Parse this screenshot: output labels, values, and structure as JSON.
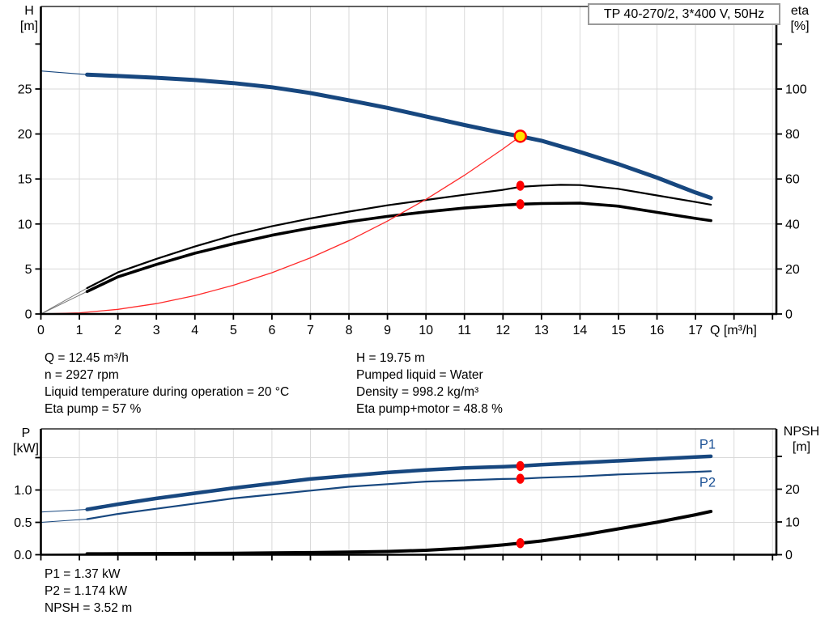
{
  "colors": {
    "curve_blue": "#17477f",
    "label_blue": "#1d5296",
    "red": "#ff0000",
    "yellow": "#ffe400",
    "grid": "#d9d9d9",
    "axis": "#000000",
    "lead_gray": "#777777"
  },
  "title_box": {
    "label": "TP 40-270/2, 3*400 V, 50Hz"
  },
  "info_top": {
    "left": [
      "Q = 12.45 m³/h",
      "n = 2927 rpm",
      "Liquid temperature during operation = 20 °C",
      "Eta pump = 57 %"
    ],
    "right": [
      "H = 19.75 m",
      "Pumped liquid = Water",
      "Density = 998.2 kg/m³",
      "Eta pump+motor = 48.8 %"
    ]
  },
  "info_bottom": [
    "P1 = 1.37 kW",
    "P2 = 1.174 kW",
    "NPSH = 3.52 m"
  ],
  "chart_data": [
    {
      "name": "head-efficiency-chart",
      "type": "line",
      "title": "TP 40-270/2, 3*400 V, 50Hz",
      "x_axis": {
        "label": "Q [m³/h]",
        "min": 0,
        "max": 19.1,
        "tick_labels": [
          "0",
          "1",
          "2",
          "3",
          "4",
          "5",
          "6",
          "7",
          "8",
          "9",
          "10",
          "11",
          "12",
          "13",
          "14",
          "15",
          "16",
          "17"
        ]
      },
      "y_left": {
        "name": "H",
        "unit": "[m]",
        "min": 0,
        "max": 34.17,
        "ticks": [
          {
            "v": 0,
            "label": "0"
          },
          {
            "v": 5,
            "label": "5"
          },
          {
            "v": 10,
            "label": "10"
          },
          {
            "v": 15,
            "label": "15"
          },
          {
            "v": 20,
            "label": "20"
          },
          {
            "v": 25,
            "label": "25"
          },
          {
            "v": 30
          }
        ],
        "grid_values": [
          5,
          10,
          15,
          20,
          25
        ]
      },
      "y_right": {
        "name": "eta",
        "unit": "[%]",
        "min": 0,
        "max": 136.7,
        "ticks": [
          {
            "v": 0,
            "label": "0"
          },
          {
            "v": 20,
            "label": "20"
          },
          {
            "v": 40,
            "label": "40"
          },
          {
            "v": 60,
            "label": "60"
          },
          {
            "v": 80,
            "label": "80"
          },
          {
            "v": 100,
            "label": "100"
          },
          {
            "v": 120
          }
        ]
      },
      "series": [
        {
          "name": "head-curve-lead",
          "axis": "left",
          "color": "#17477f",
          "width": 1.2,
          "points": [
            [
              0,
              27.0
            ],
            [
              1.2,
              26.6
            ]
          ]
        },
        {
          "name": "head-curve",
          "axis": "left",
          "color": "#17477f",
          "width": 5,
          "points": [
            [
              1.2,
              26.6
            ],
            [
              2,
              26.45
            ],
            [
              3,
              26.25
            ],
            [
              4,
              26.0
            ],
            [
              5,
              25.65
            ],
            [
              6,
              25.2
            ],
            [
              7,
              24.55
            ],
            [
              8,
              23.75
            ],
            [
              9,
              22.9
            ],
            [
              10,
              21.95
            ],
            [
              11,
              21.0
            ],
            [
              12,
              20.1
            ],
            [
              12.45,
              19.75
            ],
            [
              13,
              19.25
            ],
            [
              14,
              18.0
            ],
            [
              15,
              16.65
            ],
            [
              16,
              15.15
            ],
            [
              17,
              13.5
            ],
            [
              17.4,
              12.9
            ]
          ]
        },
        {
          "name": "eta-pump-curve-lead",
          "axis": "right",
          "color": "#777777",
          "width": 1,
          "points": [
            [
              0,
              0
            ],
            [
              1.2,
              11.5
            ]
          ]
        },
        {
          "name": "eta-pump-motor-curve-lead",
          "axis": "right",
          "color": "#777777",
          "width": 1,
          "points": [
            [
              0,
              0
            ],
            [
              1.2,
              10.0
            ]
          ]
        },
        {
          "name": "eta-pump-curve",
          "axis": "right",
          "color": "#000000",
          "width": 2.2,
          "points": [
            [
              1.2,
              11.5
            ],
            [
              2,
              18.5
            ],
            [
              3,
              24.5
            ],
            [
              4,
              30
            ],
            [
              5,
              35
            ],
            [
              6,
              39
            ],
            [
              7,
              42.5
            ],
            [
              8,
              45.5
            ],
            [
              9,
              48.3
            ],
            [
              10,
              50.7
            ],
            [
              11,
              53
            ],
            [
              12,
              55.2
            ],
            [
              12.45,
              56.5
            ],
            [
              13,
              57.1
            ],
            [
              13.5,
              57.4
            ],
            [
              14,
              57.3
            ],
            [
              15,
              55.6
            ],
            [
              16,
              52.7
            ],
            [
              17,
              49.8
            ],
            [
              17.4,
              48.6
            ]
          ]
        },
        {
          "name": "eta-pump-motor-curve",
          "axis": "right",
          "color": "#000000",
          "width": 3.6,
          "points": [
            [
              1.2,
              10
            ],
            [
              2,
              16.5
            ],
            [
              3,
              22
            ],
            [
              4,
              27
            ],
            [
              5,
              31.2
            ],
            [
              6,
              35
            ],
            [
              7,
              38.2
            ],
            [
              8,
              41
            ],
            [
              9,
              43.4
            ],
            [
              10,
              45.4
            ],
            [
              11,
              47.1
            ],
            [
              12,
              48.4
            ],
            [
              12.45,
              48.8
            ],
            [
              13,
              49.1
            ],
            [
              14,
              49.3
            ],
            [
              15,
              47.9
            ],
            [
              16,
              45.2
            ],
            [
              17,
              42.5
            ],
            [
              17.4,
              41.5
            ]
          ]
        },
        {
          "name": "system-curve",
          "axis": "left",
          "color": "#ff2a2a",
          "width": 1.3,
          "points": [
            [
              0,
              0
            ],
            [
              1,
              0.13
            ],
            [
              2,
              0.51
            ],
            [
              3,
              1.15
            ],
            [
              4,
              2.04
            ],
            [
              5,
              3.19
            ],
            [
              6,
              4.59
            ],
            [
              7,
              6.24
            ],
            [
              8,
              8.15
            ],
            [
              9,
              10.32
            ],
            [
              10,
              12.74
            ],
            [
              11,
              15.41
            ],
            [
              12,
              18.34
            ],
            [
              12.45,
              19.75
            ]
          ]
        }
      ],
      "markers": [
        {
          "name": "eta-pump-point",
          "shape": "dot",
          "q": 12.45,
          "axis": "right",
          "value": 57
        },
        {
          "name": "eta-pump-motor-point",
          "shape": "dot",
          "q": 12.45,
          "axis": "right",
          "value": 48.8
        },
        {
          "name": "duty-point",
          "shape": "duty",
          "q": 12.45,
          "axis": "left",
          "value": 19.75
        }
      ],
      "annotations": []
    },
    {
      "name": "power-npsh-chart",
      "type": "line",
      "title": "",
      "x_axis": {
        "label": "",
        "min": 0,
        "max": 19.1,
        "tick_labels": []
      },
      "y_left": {
        "name": "P",
        "unit": "[kW]",
        "min": 0,
        "max": 1.944,
        "ticks": [
          {
            "v": 0,
            "label": "0.0"
          },
          {
            "v": 0.5,
            "label": "0.5"
          },
          {
            "v": 1,
            "label": "1.0"
          },
          {
            "v": 1.5
          }
        ],
        "grid_values": [
          0.5,
          1,
          1.5
        ]
      },
      "y_right": {
        "name": "NPSH",
        "unit": "[m]",
        "min": 0,
        "max": 38.4,
        "ticks": [
          {
            "v": 0,
            "label": "0"
          },
          {
            "v": 10,
            "label": "10"
          },
          {
            "v": 20,
            "label": "20"
          },
          {
            "v": 30
          }
        ]
      },
      "series": [
        {
          "name": "p1-curve-lead",
          "axis": "left",
          "color": "#17477f",
          "width": 1,
          "points": [
            [
              0,
              0.66
            ],
            [
              1.2,
              0.7
            ]
          ]
        },
        {
          "name": "p2-curve-lead",
          "axis": "left",
          "color": "#17477f",
          "width": 1,
          "points": [
            [
              0,
              0.5
            ],
            [
              1.2,
              0.55
            ]
          ]
        },
        {
          "name": "npsh-curve-lead",
          "axis": "right",
          "color": "#888888",
          "width": 1.5,
          "points": [
            [
              0,
              0.08
            ],
            [
              1.2,
              0.28
            ]
          ]
        },
        {
          "name": "p1-curve",
          "axis": "left",
          "color": "#17477f",
          "width": 4.5,
          "points": [
            [
              1.2,
              0.7
            ],
            [
              2,
              0.78
            ],
            [
              3,
              0.87
            ],
            [
              4,
              0.95
            ],
            [
              5,
              1.03
            ],
            [
              6,
              1.1
            ],
            [
              7,
              1.17
            ],
            [
              8,
              1.22
            ],
            [
              9,
              1.27
            ],
            [
              10,
              1.31
            ],
            [
              11,
              1.34
            ],
            [
              12,
              1.36
            ],
            [
              12.45,
              1.37
            ],
            [
              13,
              1.39
            ],
            [
              14,
              1.42
            ],
            [
              15,
              1.45
            ],
            [
              16,
              1.48
            ],
            [
              17,
              1.51
            ],
            [
              17.4,
              1.52
            ]
          ]
        },
        {
          "name": "p2-curve",
          "axis": "left",
          "color": "#17477f",
          "width": 2.2,
          "points": [
            [
              1.2,
              0.55
            ],
            [
              2,
              0.63
            ],
            [
              3,
              0.71
            ],
            [
              4,
              0.79
            ],
            [
              5,
              0.87
            ],
            [
              6,
              0.93
            ],
            [
              7,
              0.99
            ],
            [
              8,
              1.05
            ],
            [
              9,
              1.09
            ],
            [
              10,
              1.13
            ],
            [
              11,
              1.15
            ],
            [
              12,
              1.17
            ],
            [
              12.45,
              1.174
            ],
            [
              13,
              1.19
            ],
            [
              14,
              1.21
            ],
            [
              15,
              1.24
            ],
            [
              16,
              1.26
            ],
            [
              17,
              1.28
            ],
            [
              17.4,
              1.29
            ]
          ]
        },
        {
          "name": "npsh-curve",
          "axis": "right",
          "color": "#000000",
          "width": 4,
          "points": [
            [
              1.2,
              0.28
            ],
            [
              2,
              0.3
            ],
            [
              3,
              0.35
            ],
            [
              4,
              0.4
            ],
            [
              5,
              0.45
            ],
            [
              6,
              0.55
            ],
            [
              7,
              0.65
            ],
            [
              8,
              0.8
            ],
            [
              9,
              1.0
            ],
            [
              10,
              1.35
            ],
            [
              11,
              2.0
            ],
            [
              12,
              3.0
            ],
            [
              12.45,
              3.52
            ],
            [
              13,
              4.2
            ],
            [
              14,
              5.9
            ],
            [
              15,
              7.9
            ],
            [
              16,
              9.9
            ],
            [
              17,
              12.2
            ],
            [
              17.4,
              13.2
            ]
          ]
        }
      ],
      "markers": [
        {
          "name": "p1-point",
          "shape": "dot",
          "q": 12.45,
          "axis": "left",
          "value": 1.37
        },
        {
          "name": "p2-point",
          "shape": "dot",
          "q": 12.45,
          "axis": "left",
          "value": 1.174
        },
        {
          "name": "npsh-point",
          "shape": "dot",
          "q": 12.45,
          "axis": "right",
          "value": 3.52
        }
      ],
      "annotations": [
        {
          "text": "P1",
          "q": 17.1,
          "axis": "left",
          "value": 1.64
        },
        {
          "text": "P2",
          "q": 17.1,
          "axis": "left",
          "value": 1.05
        }
      ]
    }
  ]
}
